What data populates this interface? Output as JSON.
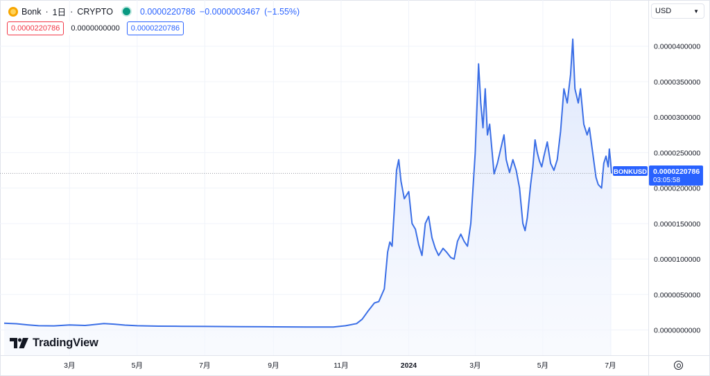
{
  "header": {
    "symbol": "Bonk",
    "interval": "1日",
    "exchange": "CRYPTO",
    "sep": "·",
    "last_price": "0.0000220786",
    "change": "−0.0000003467",
    "change_pct": "(−1.55%)",
    "status_color": "#089981"
  },
  "prices_row": {
    "bid": "0.0000220786",
    "spread": "0.0000000000",
    "ask": "0.0000220786"
  },
  "currency_select": {
    "value": "USD",
    "icon": "chevron-down-icon"
  },
  "price_label": {
    "symbol": "BONKUSD",
    "price": "0.0000220786",
    "countdown": "03:05:58"
  },
  "brand": {
    "name": "TradingView",
    "icon": "tradingview-logo-icon"
  },
  "footer": {
    "settings_icon": "settings-icon"
  },
  "colors": {
    "line": "#3a6ee6",
    "area_top": "#dce6fc",
    "area_bottom": "#f4f7fe",
    "grid": "#f0f3fa",
    "axis_text": "#131722",
    "current_line": "#9598a1",
    "label_bg": "#2962ff"
  },
  "chart_data": {
    "type": "area",
    "symbol": "BONKUSD",
    "x_range": [
      "2023-01-01",
      "2024-07-02"
    ],
    "ylim": [
      -2e-06,
      4.3e-05
    ],
    "y_ticks": [
      "0.0000400000",
      "0.0000350000",
      "0.0000300000",
      "0.0000250000",
      "0.0000200000",
      "0.0000150000",
      "0.0000100000",
      "0.0000050000",
      "0.0000000000"
    ],
    "y_tick_values": [
      4e-05,
      3.5e-05,
      3e-05,
      2.5e-05,
      2e-05,
      1.5e-05,
      1e-05,
      5e-06,
      0.0
    ],
    "x_ticks": [
      {
        "label": "3月",
        "date": "2023-03-01",
        "bold": false
      },
      {
        "label": "5月",
        "date": "2023-05-01",
        "bold": false
      },
      {
        "label": "7月",
        "date": "2023-07-01",
        "bold": false
      },
      {
        "label": "9月",
        "date": "2023-09-01",
        "bold": false
      },
      {
        "label": "11月",
        "date": "2023-11-01",
        "bold": false
      },
      {
        "label": "2024",
        "date": "2024-01-01",
        "bold": true
      },
      {
        "label": "3月",
        "date": "2024-03-01",
        "bold": false
      },
      {
        "label": "5月",
        "date": "2024-05-01",
        "bold": false
      },
      {
        "label": "7月",
        "date": "2024-07-01",
        "bold": false
      }
    ],
    "grid": true,
    "current_value": 2.20786e-05,
    "points": [
      [
        "2023-01-01",
        9.5e-07
      ],
      [
        "2023-01-12",
        8.8e-07
      ],
      [
        "2023-01-22",
        7.2e-07
      ],
      [
        "2023-02-01",
        6e-07
      ],
      [
        "2023-02-15",
        5.8e-07
      ],
      [
        "2023-03-01",
        7e-07
      ],
      [
        "2023-03-15",
        6.4e-07
      ],
      [
        "2023-04-01",
        9e-07
      ],
      [
        "2023-04-10",
        8.2e-07
      ],
      [
        "2023-04-20",
        6.8e-07
      ],
      [
        "2023-05-01",
        6e-07
      ],
      [
        "2023-05-20",
        5.4e-07
      ],
      [
        "2023-06-10",
        5.2e-07
      ],
      [
        "2023-07-01",
        5e-07
      ],
      [
        "2023-08-01",
        4.7e-07
      ],
      [
        "2023-09-01",
        4.4e-07
      ],
      [
        "2023-10-01",
        4.2e-07
      ],
      [
        "2023-10-25",
        4.1e-07
      ],
      [
        "2023-11-05",
        6e-07
      ],
      [
        "2023-11-15",
        9e-07
      ],
      [
        "2023-11-20",
        1.5e-06
      ],
      [
        "2023-11-25",
        2.6e-06
      ],
      [
        "2023-12-01",
        3.8e-06
      ],
      [
        "2023-12-05",
        4e-06
      ],
      [
        "2023-12-10",
        5.8e-06
      ],
      [
        "2023-12-13",
        1.1e-05
      ],
      [
        "2023-12-15",
        1.24e-05
      ],
      [
        "2023-12-17",
        1.18e-05
      ],
      [
        "2023-12-19",
        1.7e-05
      ],
      [
        "2023-12-21",
        2.25e-05
      ],
      [
        "2023-12-23",
        2.4e-05
      ],
      [
        "2023-12-25",
        2.1e-05
      ],
      [
        "2023-12-28",
        1.85e-05
      ],
      [
        "2024-01-01",
        1.95e-05
      ],
      [
        "2024-01-04",
        1.5e-05
      ],
      [
        "2024-01-07",
        1.42e-05
      ],
      [
        "2024-01-10",
        1.2e-05
      ],
      [
        "2024-01-13",
        1.05e-05
      ],
      [
        "2024-01-16",
        1.5e-05
      ],
      [
        "2024-01-19",
        1.6e-05
      ],
      [
        "2024-01-22",
        1.3e-05
      ],
      [
        "2024-01-25",
        1.15e-05
      ],
      [
        "2024-01-28",
        1.05e-05
      ],
      [
        "2024-02-01",
        1.15e-05
      ],
      [
        "2024-02-04",
        1.1e-05
      ],
      [
        "2024-02-08",
        1.02e-05
      ],
      [
        "2024-02-11",
        1e-05
      ],
      [
        "2024-02-14",
        1.25e-05
      ],
      [
        "2024-02-17",
        1.35e-05
      ],
      [
        "2024-02-20",
        1.25e-05
      ],
      [
        "2024-02-23",
        1.18e-05
      ],
      [
        "2024-02-26",
        1.5e-05
      ],
      [
        "2024-03-01",
        2.5e-05
      ],
      [
        "2024-03-04",
        3.75e-05
      ],
      [
        "2024-03-06",
        3.2e-05
      ],
      [
        "2024-03-08",
        2.85e-05
      ],
      [
        "2024-03-10",
        3.4e-05
      ],
      [
        "2024-03-12",
        2.75e-05
      ],
      [
        "2024-03-14",
        2.9e-05
      ],
      [
        "2024-03-16",
        2.55e-05
      ],
      [
        "2024-03-18",
        2.2e-05
      ],
      [
        "2024-03-21",
        2.35e-05
      ],
      [
        "2024-03-24",
        2.55e-05
      ],
      [
        "2024-03-27",
        2.75e-05
      ],
      [
        "2024-03-29",
        2.4e-05
      ],
      [
        "2024-04-01",
        2.22e-05
      ],
      [
        "2024-04-04",
        2.4e-05
      ],
      [
        "2024-04-07",
        2.25e-05
      ],
      [
        "2024-04-10",
        2e-05
      ],
      [
        "2024-04-13",
        1.5e-05
      ],
      [
        "2024-04-15",
        1.4e-05
      ],
      [
        "2024-04-17",
        1.58e-05
      ],
      [
        "2024-04-20",
        2.05e-05
      ],
      [
        "2024-04-22",
        2.3e-05
      ],
      [
        "2024-04-24",
        2.68e-05
      ],
      [
        "2024-04-26",
        2.5e-05
      ],
      [
        "2024-04-28",
        2.38e-05
      ],
      [
        "2024-04-30",
        2.3e-05
      ],
      [
        "2024-05-02",
        2.45e-05
      ],
      [
        "2024-05-05",
        2.65e-05
      ],
      [
        "2024-05-08",
        2.35e-05
      ],
      [
        "2024-05-11",
        2.25e-05
      ],
      [
        "2024-05-14",
        2.4e-05
      ],
      [
        "2024-05-17",
        2.8e-05
      ],
      [
        "2024-05-20",
        3.4e-05
      ],
      [
        "2024-05-23",
        3.2e-05
      ],
      [
        "2024-05-26",
        3.6e-05
      ],
      [
        "2024-05-28",
        4.1e-05
      ],
      [
        "2024-05-30",
        3.4e-05
      ],
      [
        "2024-06-02",
        3.2e-05
      ],
      [
        "2024-06-04",
        3.4e-05
      ],
      [
        "2024-06-07",
        2.9e-05
      ],
      [
        "2024-06-10",
        2.75e-05
      ],
      [
        "2024-06-12",
        2.85e-05
      ],
      [
        "2024-06-15",
        2.5e-05
      ],
      [
        "2024-06-18",
        2.15e-05
      ],
      [
        "2024-06-20",
        2.05e-05
      ],
      [
        "2024-06-23",
        2e-05
      ],
      [
        "2024-06-25",
        2.35e-05
      ],
      [
        "2024-06-27",
        2.45e-05
      ],
      [
        "2024-06-29",
        2.3e-05
      ],
      [
        "2024-06-30",
        2.55e-05
      ],
      [
        "2024-07-01",
        2.4e-05
      ],
      [
        "2024-07-02",
        2.20786e-05
      ]
    ]
  }
}
